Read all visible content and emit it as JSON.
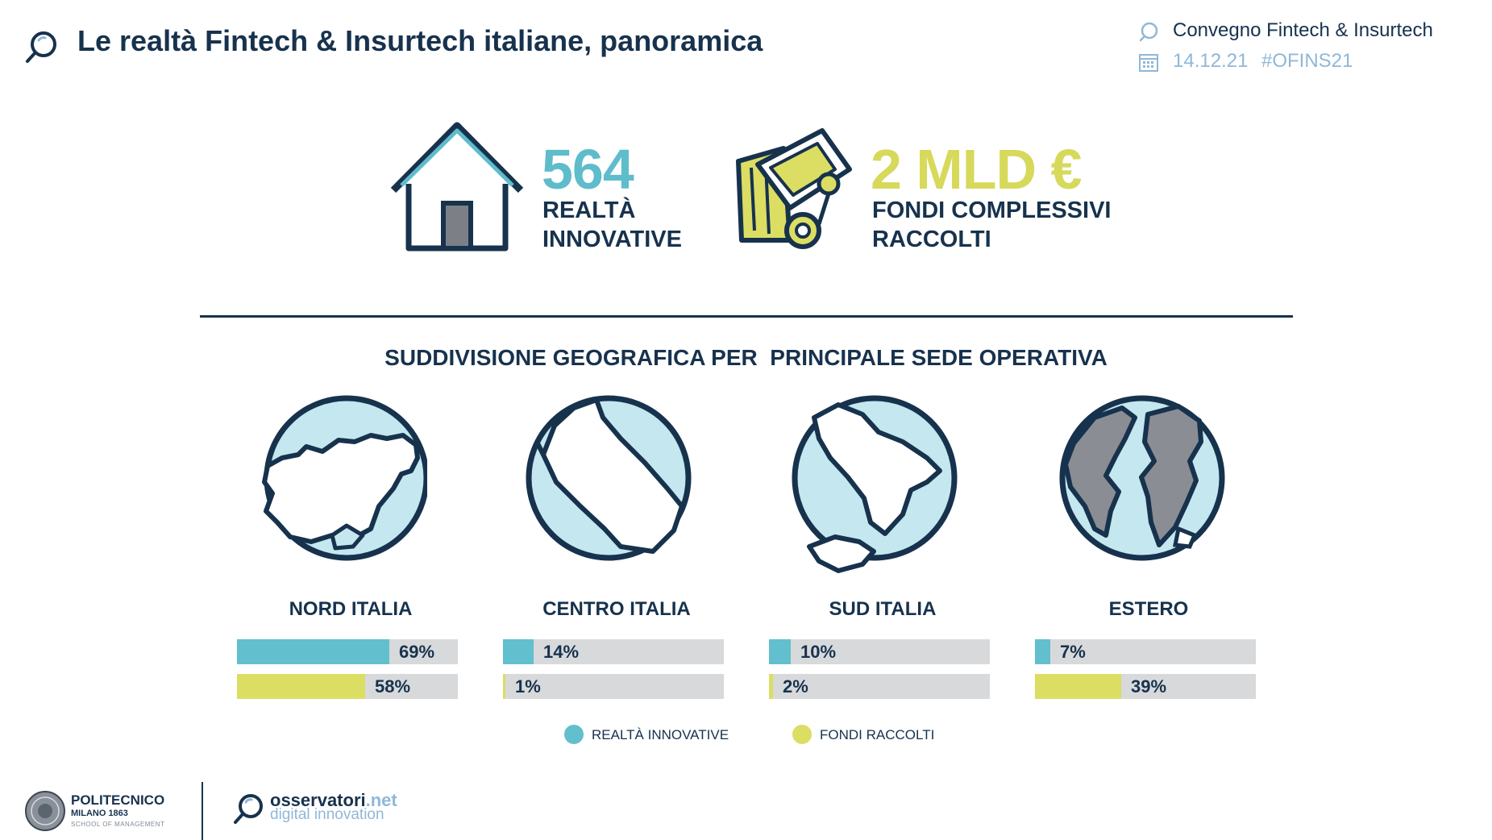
{
  "header": {
    "title": "Le realtà Fintech & Insurtech italiane, panoramica",
    "event": "Convegno Fintech & Insurtech",
    "date": "14.12.21",
    "hashtag": "#OFINS21",
    "title_icon": "magnifier-chat-icon",
    "event_icon": "chat-bubble-icon",
    "date_icon": "calendar-icon"
  },
  "kpis": {
    "innovative": {
      "number": "564",
      "line1": "REALTÀ",
      "line2": "INNOVATIVE",
      "icon": "house-icon",
      "color": "#5fbccb"
    },
    "funds": {
      "number": "2 MLD €",
      "line1": "FONDI COMPLESSIVI",
      "line2": "RACCOLTI",
      "icon": "money-bag-icon",
      "color": "#d6d95a"
    }
  },
  "section_title": "SUDDIVISIONE GEOGRAFICA PER  PRINCIPALE SEDE OPERATIVA",
  "regions": [
    {
      "name": "NORD ITALIA",
      "innovative_pct": 69,
      "funds_pct": 58,
      "innovative_label": "69%",
      "funds_label": "58%",
      "icon": "north-italy-globe-icon"
    },
    {
      "name": "CENTRO ITALIA",
      "innovative_pct": 14,
      "funds_pct": 1,
      "innovative_label": "14%",
      "funds_label": "1%",
      "icon": "central-italy-globe-icon"
    },
    {
      "name": "SUD ITALIA",
      "innovative_pct": 10,
      "funds_pct": 2,
      "innovative_label": "10%",
      "funds_label": "2%",
      "icon": "south-italy-globe-icon"
    },
    {
      "name": "ESTERO",
      "innovative_pct": 7,
      "funds_pct": 39,
      "innovative_label": "7%",
      "funds_label": "39%",
      "icon": "world-globe-icon"
    }
  ],
  "legend": {
    "innovative": "REALTÀ INNOVATIVE",
    "funds": "FONDI RACCOLTI",
    "innovative_color": "#62bfcd",
    "funds_color": "#dcdd63"
  },
  "footer": {
    "politecnico_name": "POLITECNICO",
    "politecnico_city": "MILANO 1863",
    "politecnico_school": "SCHOOL OF MANAGEMENT",
    "osservatori_name": "osservatori",
    "osservatori_tld": ".net",
    "osservatori_tagline": "digital innovation"
  }
}
